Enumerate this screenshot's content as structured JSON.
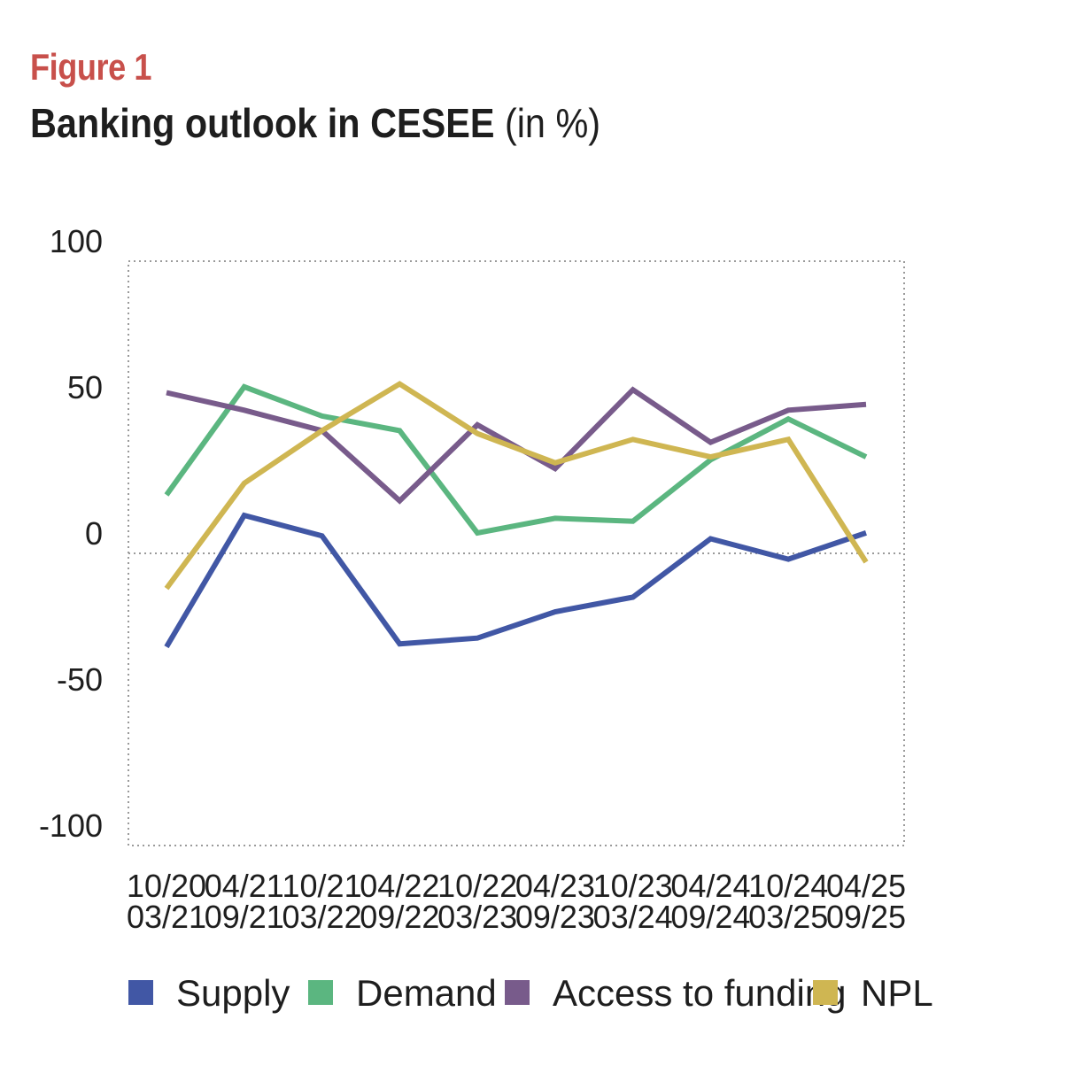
{
  "figure": {
    "label": "Figure 1",
    "title_main": "Banking outlook in CESEE",
    "title_unit": "(in %)"
  },
  "chart_data": {
    "type": "line",
    "categories": [
      [
        "10/20",
        "03/21"
      ],
      [
        "04/21",
        "09/21"
      ],
      [
        "10/21",
        "03/22"
      ],
      [
        "04/22",
        "09/22"
      ],
      [
        "10/22",
        "03/23"
      ],
      [
        "04/23",
        "09/23"
      ],
      [
        "10/23",
        "03/24"
      ],
      [
        "04/24",
        "09/24"
      ],
      [
        "10/24",
        "03/25"
      ],
      [
        "04/25",
        "09/25"
      ]
    ],
    "series": [
      {
        "name": "Supply",
        "color": "#4157a5",
        "values": [
          -32,
          13,
          6,
          -31,
          -29,
          -20,
          -15,
          5,
          -2,
          7
        ]
      },
      {
        "name": "Demand",
        "color": "#5bb680",
        "values": [
          20,
          57,
          47,
          42,
          7,
          12,
          11,
          32,
          46,
          33
        ]
      },
      {
        "name": "Access to funding",
        "color": "#785b8b",
        "values": [
          55,
          49,
          42,
          18,
          44,
          29,
          56,
          38,
          49,
          51
        ]
      },
      {
        "name": "NPL",
        "color": "#cfb652",
        "values": [
          -12,
          24,
          42,
          58,
          41,
          31,
          39,
          33,
          39,
          -3
        ]
      }
    ],
    "yticks": [
      100,
      50,
      0,
      -50,
      -100
    ],
    "ylim": [
      -100,
      100
    ],
    "grid": false,
    "zero_line": true,
    "legend_position": "bottom"
  }
}
